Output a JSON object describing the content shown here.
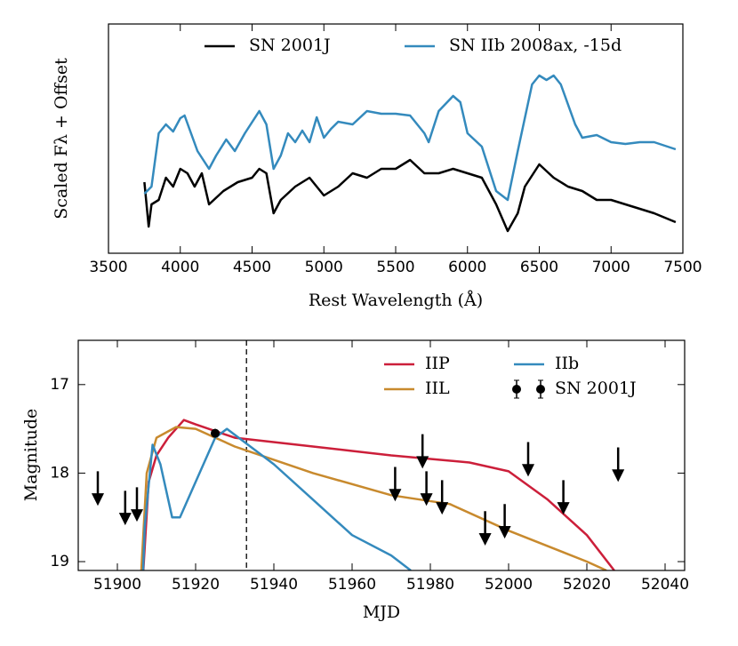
{
  "chart_data": [
    {
      "type": "line",
      "xlabel": "Rest Wavelength (Å)",
      "ylabel": "Scaled Fλ + Offset",
      "xlim": [
        3500,
        7500
      ],
      "xticks": [
        3500,
        4000,
        4500,
        5000,
        5500,
        6000,
        6500,
        7000,
        7500
      ],
      "ylim": [
        0,
        258
      ],
      "legend": "top",
      "series": [
        {
          "name": "SN 2001J",
          "color": "#000000",
          "x": [
            3750,
            3780,
            3800,
            3850,
            3900,
            3950,
            4000,
            4050,
            4100,
            4150,
            4200,
            4300,
            4400,
            4500,
            4550,
            4600,
            4650,
            4700,
            4800,
            4900,
            5000,
            5100,
            5200,
            5300,
            5400,
            5500,
            5600,
            5700,
            5800,
            5900,
            6000,
            6100,
            6200,
            6280,
            6350,
            6400,
            6500,
            6600,
            6700,
            6800,
            6900,
            7000,
            7100,
            7200,
            7300,
            7450
          ],
          "values": [
            80,
            30,
            55,
            60,
            85,
            75,
            95,
            90,
            75,
            90,
            55,
            70,
            80,
            85,
            95,
            90,
            45,
            60,
            75,
            85,
            65,
            75,
            90,
            85,
            95,
            95,
            105,
            90,
            90,
            95,
            90,
            85,
            55,
            25,
            45,
            75,
            100,
            85,
            75,
            70,
            60,
            60,
            55,
            50,
            45,
            35
          ]
        },
        {
          "name": "SN IIb 2008ax, -15d",
          "color": "#348abd",
          "x": [
            3750,
            3800,
            3850,
            3900,
            3950,
            4000,
            4030,
            4070,
            4120,
            4200,
            4250,
            4320,
            4380,
            4450,
            4550,
            4600,
            4650,
            4700,
            4750,
            4800,
            4850,
            4900,
            4950,
            5000,
            5050,
            5100,
            5200,
            5300,
            5400,
            5500,
            5600,
            5700,
            5730,
            5800,
            5900,
            5950,
            6000,
            6100,
            6200,
            6280,
            6350,
            6450,
            6500,
            6550,
            6600,
            6650,
            6750,
            6800,
            6900,
            7000,
            7100,
            7200,
            7300,
            7450
          ],
          "values": [
            67,
            75,
            135,
            145,
            137,
            152,
            155,
            137,
            115,
            95,
            110,
            128,
            115,
            135,
            160,
            145,
            95,
            110,
            135,
            125,
            138,
            125,
            153,
            130,
            140,
            148,
            145,
            160,
            157,
            157,
            155,
            135,
            125,
            160,
            177,
            170,
            135,
            120,
            70,
            60,
            115,
            190,
            200,
            195,
            200,
            190,
            145,
            130,
            133,
            125,
            123,
            125,
            125,
            117
          ]
        }
      ]
    },
    {
      "type": "line",
      "xlabel": "MJD",
      "ylabel": "Magnitude",
      "xlim": [
        51890,
        52045
      ],
      "xticks": [
        51900,
        51920,
        51940,
        51960,
        51980,
        52000,
        52020,
        52040
      ],
      "ylim": [
        19.1,
        16.5
      ],
      "yticks": [
        17,
        18,
        19
      ],
      "legend": "upper right",
      "vline": 51933,
      "series": [
        {
          "name": "IIP",
          "color": "#cc1f3a",
          "x": [
            51906.5,
            51908,
            51910,
            51913,
            51917,
            51920,
            51930,
            51950,
            51970,
            51990,
            52000,
            52010,
            52020,
            52027
          ],
          "values": [
            19.2,
            18.1,
            17.8,
            17.6,
            17.4,
            17.45,
            17.6,
            17.7,
            17.8,
            17.88,
            17.98,
            18.3,
            18.7,
            19.1
          ]
        },
        {
          "name": "IIL",
          "color": "#c88a2e",
          "x": [
            51906,
            51907.5,
            51910,
            51915,
            51920,
            51930,
            51950,
            51970,
            51985,
            52000,
            52020,
            52025
          ],
          "values": [
            19.2,
            18.0,
            17.6,
            17.48,
            17.5,
            17.7,
            18.0,
            18.25,
            18.35,
            18.65,
            19.0,
            19.1
          ]
        },
        {
          "name": "IIb",
          "color": "#348abd",
          "x": [
            51906.5,
            51907,
            51909,
            51911,
            51914,
            51916,
            51920,
            51925,
            51928,
            51940,
            51950,
            51960,
            51970,
            51975
          ],
          "values": [
            19.2,
            18.6,
            17.68,
            17.9,
            18.5,
            18.5,
            18.1,
            17.6,
            17.5,
            17.9,
            18.3,
            18.7,
            18.93,
            19.1
          ]
        },
        {
          "name": "SN 2001J",
          "color": "#000000",
          "marker": "errorbar",
          "x": [
            51925
          ],
          "values": [
            17.55
          ],
          "errors": [
            0.05
          ]
        }
      ],
      "upper_limits": {
        "color": "#000000",
        "x": [
          51895,
          51902,
          51905,
          51971,
          51978,
          51979,
          51983,
          51994,
          51999,
          52005,
          52014,
          52028
        ],
        "values": [
          17.98,
          18.2,
          18.16,
          17.93,
          17.56,
          17.98,
          18.08,
          18.43,
          18.35,
          17.65,
          18.08,
          17.71
        ]
      }
    }
  ]
}
